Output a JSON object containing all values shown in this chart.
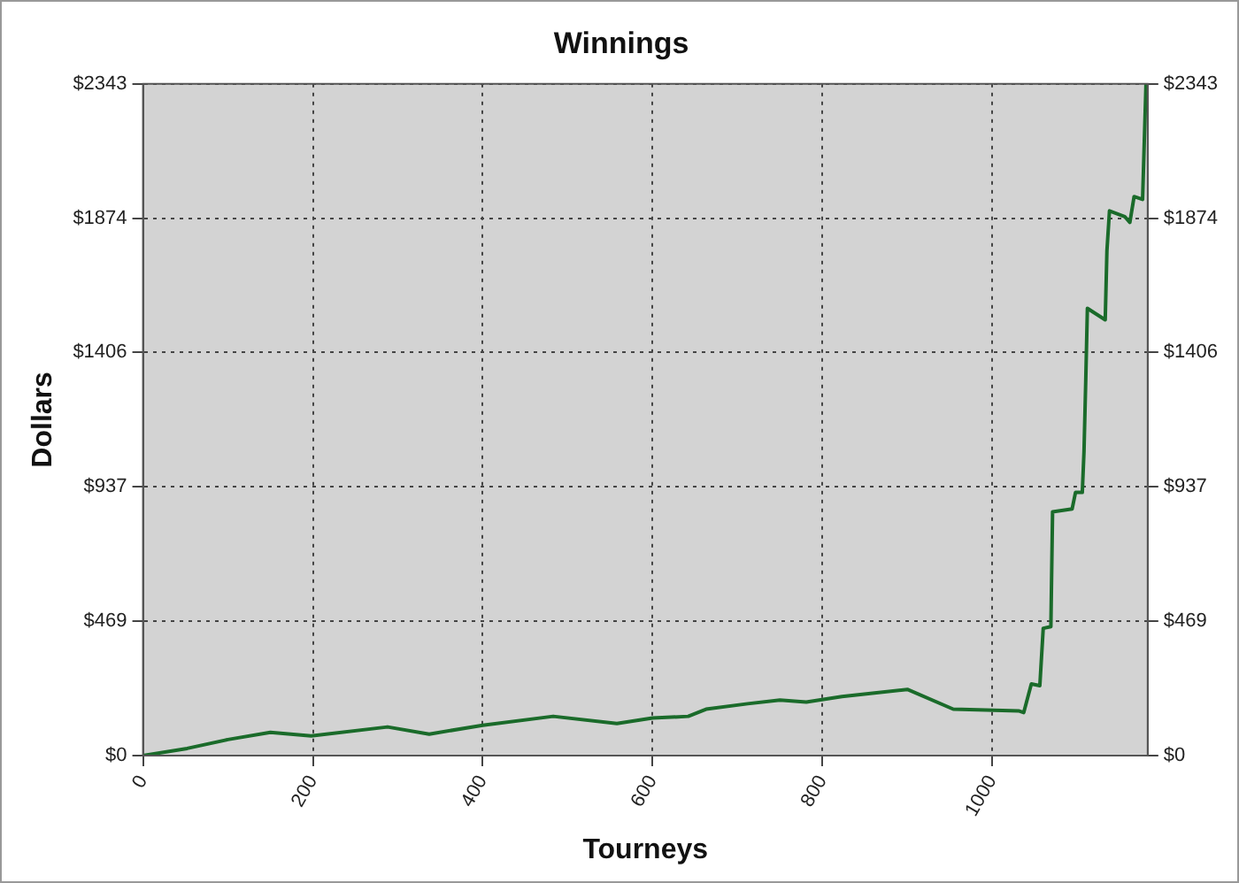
{
  "chart_data": {
    "type": "line",
    "title": "Winnings",
    "xlabel": "Tourneys",
    "ylabel": "Dollars",
    "x": [
      0,
      52,
      100,
      150,
      198,
      288,
      337,
      400,
      483,
      558,
      600,
      642,
      663,
      712,
      750,
      781,
      823,
      900,
      954,
      1031,
      1037,
      1046,
      1056,
      1060,
      1069,
      1071,
      1094,
      1098,
      1106,
      1108,
      1110,
      1112,
      1133,
      1135,
      1138,
      1156,
      1162,
      1167,
      1177,
      1181
    ],
    "series": [
      {
        "color": "#1a6b2a",
        "values": [
          0,
          25,
          56,
          81,
          69,
          100,
          75,
          106,
          137,
          112,
          131,
          137,
          162,
          181,
          194,
          187,
          206,
          231,
          162,
          156,
          150,
          250,
          244,
          444,
          450,
          850,
          860,
          918,
          918,
          1060,
          1300,
          1560,
          1520,
          1760,
          1900,
          1880,
          1860,
          1950,
          1940,
          2343
        ]
      }
    ],
    "xlim": [
      0,
      1183
    ],
    "xticks": [
      0,
      200,
      400,
      600,
      800,
      1000
    ],
    "ylim": [
      0,
      2343
    ],
    "yticks": [
      {
        "value": 0,
        "label": "$0"
      },
      {
        "value": 469,
        "label": "$469"
      },
      {
        "value": 937,
        "label": "$937"
      },
      {
        "value": 1406,
        "label": "$1406"
      },
      {
        "value": 1874,
        "label": "$1874"
      },
      {
        "value": 2343,
        "label": "$2343"
      }
    ],
    "y2lim": [
      0,
      2343
    ],
    "y2ticks": [
      {
        "value": 0,
        "label": "$0"
      },
      {
        "value": 469,
        "label": "$469"
      },
      {
        "value": 937,
        "label": "$937"
      },
      {
        "value": 1406,
        "label": "$1406"
      },
      {
        "value": 1874,
        "label": "$1874"
      },
      {
        "value": 2343,
        "label": "$2343"
      }
    ],
    "grid": true,
    "legend": false,
    "marker": "none",
    "line_style": "solid"
  }
}
